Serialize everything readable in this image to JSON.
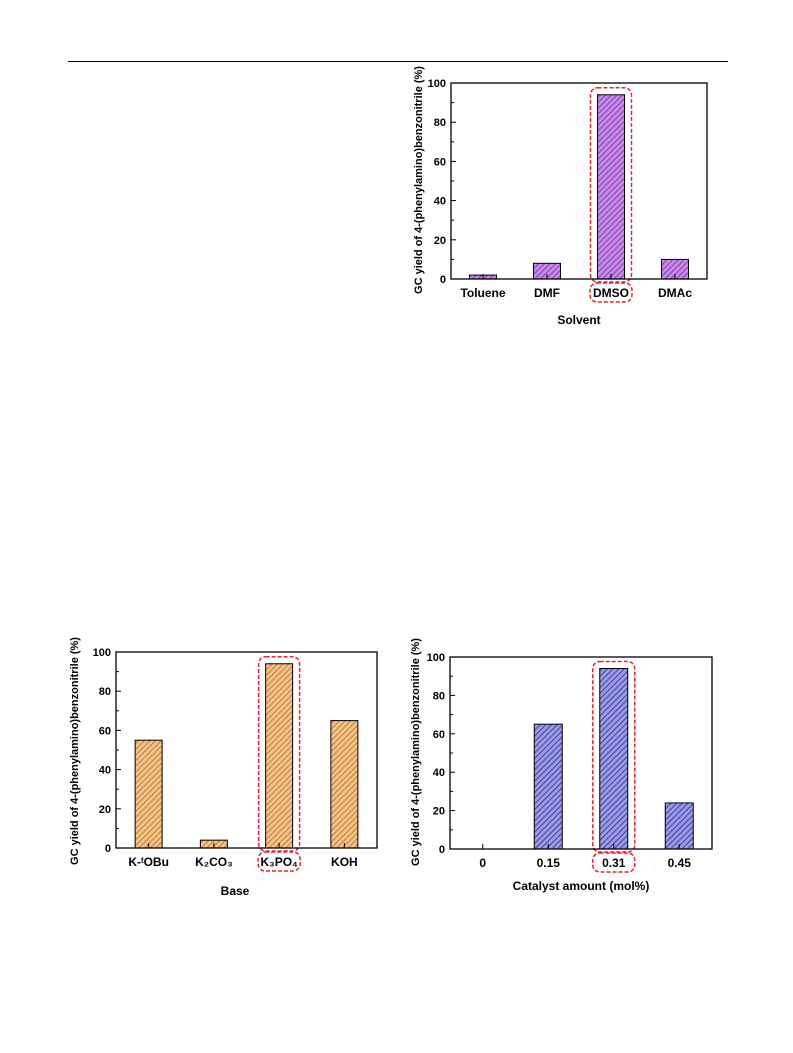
{
  "chart_data": [
    {
      "type": "bar",
      "title": "",
      "categories": [
        "Toluene",
        "DMF",
        "DMSO",
        "DMAc"
      ],
      "values": [
        2,
        8,
        94,
        10
      ],
      "xlabel": "Solvent",
      "ylabel": "GC yield of 4-(phenylamino)benzonitrile (%)",
      "ylim": [
        0,
        100
      ],
      "yticks": [
        "0",
        "20",
        "40",
        "60",
        "80",
        "100"
      ],
      "bar_color": "#c48ae8",
      "hatch_color": "#7a2a9a",
      "highlight_index": 2,
      "highlight_color": "#e8232a",
      "grid": false
    },
    {
      "type": "bar",
      "title": "",
      "categories": [
        "K-ᵗOBu",
        "K₂CO₃",
        "K₃PO₄",
        "KOH"
      ],
      "values": [
        55,
        4,
        94,
        65
      ],
      "xlabel": "Base",
      "ylabel": "GC yield of 4-(phenylamino)benzonitrile (%)",
      "ylim": [
        0,
        100
      ],
      "yticks": [
        "0",
        "20",
        "40",
        "60",
        "80",
        "100"
      ],
      "bar_color": "#f2c38a",
      "hatch_color": "#b86a1a",
      "highlight_index": 2,
      "highlight_color": "#e8232a",
      "grid": false
    },
    {
      "type": "bar",
      "title": "",
      "categories": [
        "0",
        "0.15",
        "0.31",
        "0.45"
      ],
      "values": [
        0,
        65,
        94,
        24
      ],
      "xlabel": "Catalyst amount (mol%)",
      "ylabel": "GC yield of 4-(phenylamino)benzonitrile (%)",
      "ylim": [
        0,
        100
      ],
      "yticks": [
        "0",
        "20",
        "40",
        "60",
        "80",
        "100"
      ],
      "bar_color": "#9a9ae8",
      "hatch_color": "#2a2a8a",
      "highlight_index": 2,
      "highlight_color": "#e8232a",
      "grid": false
    }
  ]
}
